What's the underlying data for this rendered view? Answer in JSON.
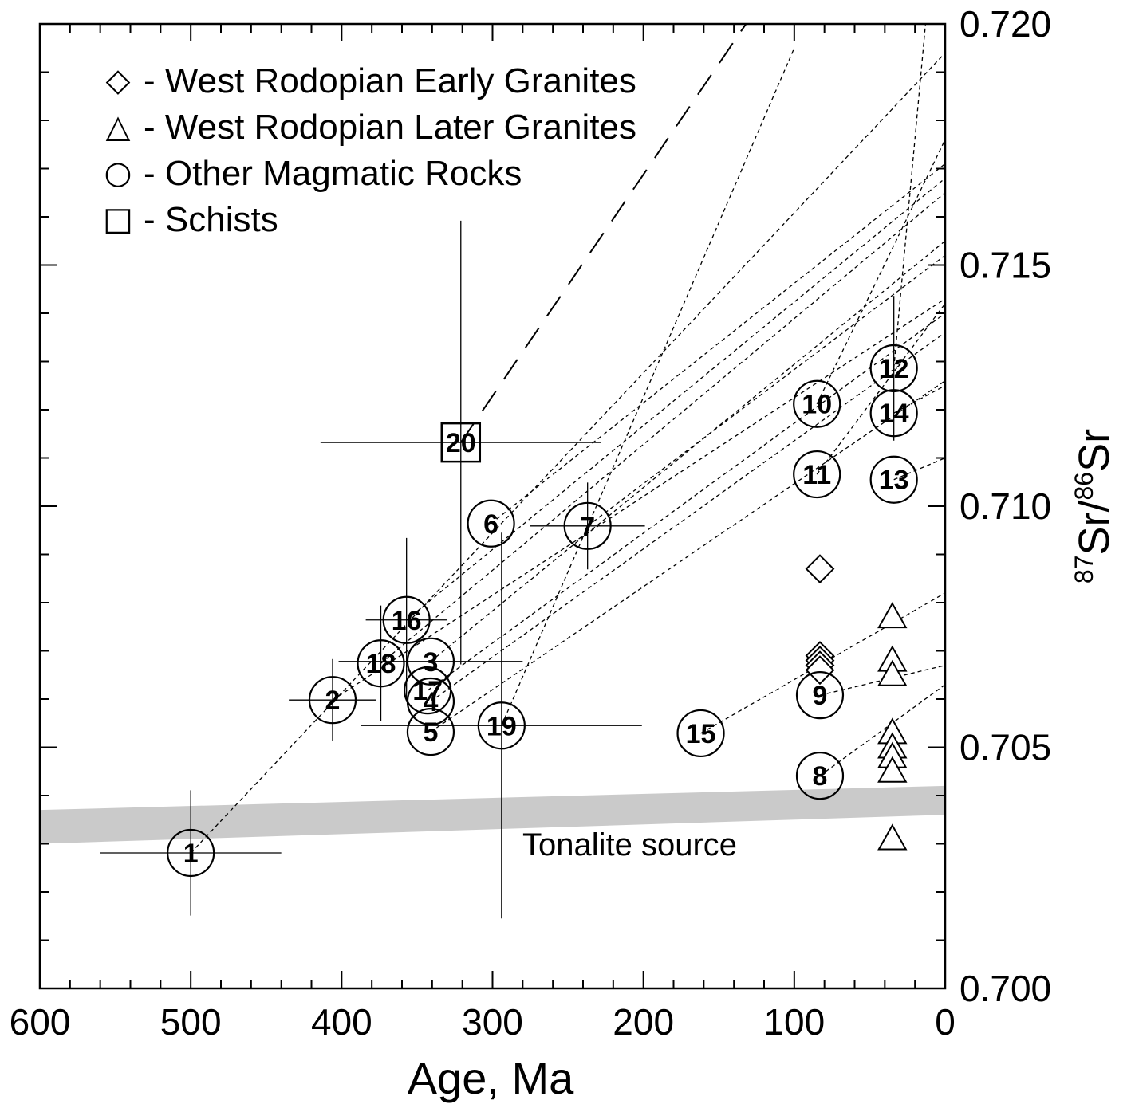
{
  "chart_data": {
    "type": "scatter",
    "x_label": "Age, Ma",
    "y_label_parts": [
      "87",
      "Sr/",
      "86",
      "Sr"
    ],
    "xlim": [
      600,
      0
    ],
    "xticks": [
      600,
      500,
      400,
      300,
      200,
      100,
      0
    ],
    "ylim": [
      0.7,
      0.72
    ],
    "yticks": [
      {
        "value": 0.7,
        "label": "0.700"
      },
      {
        "value": 0.705,
        "label": "0.705"
      },
      {
        "value": 0.71,
        "label": "0.710"
      },
      {
        "value": 0.715,
        "label": "0.715"
      },
      {
        "value": 0.72,
        "label": "0.720"
      }
    ],
    "color": "#000000",
    "series": [
      {
        "name": "West Rodopian Early Granites",
        "marker": "diamond",
        "legend_symbol": "◇",
        "x": [
          83,
          83,
          83,
          83,
          83
        ],
        "values": [
          0.7087,
          0.7069,
          0.7068,
          0.7067,
          0.7066
        ]
      },
      {
        "name": "West Rodopian Later Granites",
        "marker": "triangle",
        "legend_symbol": "△",
        "x": [
          35,
          35,
          35,
          35,
          35,
          35,
          35,
          35
        ],
        "values": [
          0.7077,
          0.7068,
          0.7065,
          0.7053,
          0.705,
          0.7048,
          0.7045,
          0.7031
        ]
      },
      {
        "name": "Other Magmatic Rocks",
        "marker": "circle",
        "legend_symbol": "○",
        "labels": [
          "1",
          "2",
          "3",
          "4",
          "5",
          "6",
          "7",
          "8",
          "9",
          "10",
          "11",
          "12",
          "13",
          "14",
          "15",
          "16",
          "17",
          "18",
          "19"
        ],
        "x": [
          500,
          406,
          341,
          341,
          341,
          301,
          237,
          83,
          83,
          85,
          85,
          34,
          34,
          34,
          162,
          357,
          343,
          374,
          294
        ],
        "values": [
          0.70281,
          0.70598,
          0.70678,
          0.70595,
          0.70532,
          0.70964,
          0.70959,
          0.70441,
          0.70608,
          0.71212,
          0.71066,
          0.71286,
          0.71055,
          0.71193,
          0.70529,
          0.70764,
          0.70618,
          0.70674,
          0.70545
        ],
        "xerr": [
          60,
          29,
          61,
          null,
          null,
          null,
          38,
          null,
          null,
          null,
          null,
          null,
          null,
          null,
          null,
          27,
          null,
          null,
          93
        ],
        "yerr": [
          0.0013,
          0.00085,
          null,
          null,
          null,
          null,
          0.0009,
          null,
          null,
          null,
          null,
          0.0015,
          null,
          null,
          null,
          0.0017,
          null,
          0.0012,
          0.004
        ]
      },
      {
        "name": "Schists",
        "marker": "square",
        "legend_symbol": "□",
        "labels": [
          "20"
        ],
        "x": [
          321
        ],
        "values": [
          0.71132
        ],
        "xerr": [
          93
        ],
        "yerr": [
          0.0046
        ]
      }
    ],
    "evolution_lines": [
      {
        "x": [
          500,
          0
        ],
        "values": [
          0.70281,
          0.7194
        ]
      },
      {
        "x": [
          357,
          0
        ],
        "values": [
          0.70764,
          0.7168
        ]
      },
      {
        "x": [
          374,
          0
        ],
        "values": [
          0.70674,
          0.7165
        ]
      },
      {
        "x": [
          341,
          0
        ],
        "values": [
          0.70678,
          0.7155
        ]
      },
      {
        "x": [
          301,
          0
        ],
        "values": [
          0.70964,
          0.7171
        ]
      },
      {
        "x": [
          406,
          0
        ],
        "values": [
          0.70598,
          0.7143
        ]
      },
      {
        "x": [
          343,
          0
        ],
        "values": [
          0.70618,
          0.714
        ]
      },
      {
        "x": [
          341,
          0
        ],
        "values": [
          0.70595,
          0.7136
        ]
      },
      {
        "x": [
          341,
          0
        ],
        "values": [
          0.70532,
          0.7126
        ]
      },
      {
        "x": [
          294,
          100
        ],
        "values": [
          0.70545,
          0.7195
        ]
      },
      {
        "x": [
          237,
          0
        ],
        "values": [
          0.70959,
          0.7152
        ]
      },
      {
        "x": [
          85,
          0
        ],
        "values": [
          0.71212,
          0.7176
        ]
      },
      {
        "x": [
          85,
          0
        ],
        "values": [
          0.71066,
          0.7142
        ]
      },
      {
        "x": [
          34,
          0
        ],
        "values": [
          0.71055,
          0.711
        ]
      },
      {
        "x": [
          34,
          0
        ],
        "values": [
          0.71193,
          0.7125
        ]
      },
      {
        "x": [
          34,
          13
        ],
        "values": [
          0.71286,
          0.72
        ]
      },
      {
        "x": [
          162,
          0
        ],
        "values": [
          0.70529,
          0.7082
        ]
      },
      {
        "x": [
          83,
          0
        ],
        "values": [
          0.70608,
          0.7067
        ]
      },
      {
        "x": [
          83,
          0
        ],
        "values": [
          0.70441,
          0.7063
        ]
      }
    ],
    "schist_line": {
      "x": [
        321,
        132
      ],
      "values": [
        0.71132,
        0.72
      ]
    },
    "band": {
      "name": "Tonalite source",
      "x": [
        600,
        0
      ],
      "lower": [
        0.703,
        0.7036
      ],
      "upper": [
        0.7037,
        0.7042
      ],
      "color": "#bdbdbd"
    }
  }
}
